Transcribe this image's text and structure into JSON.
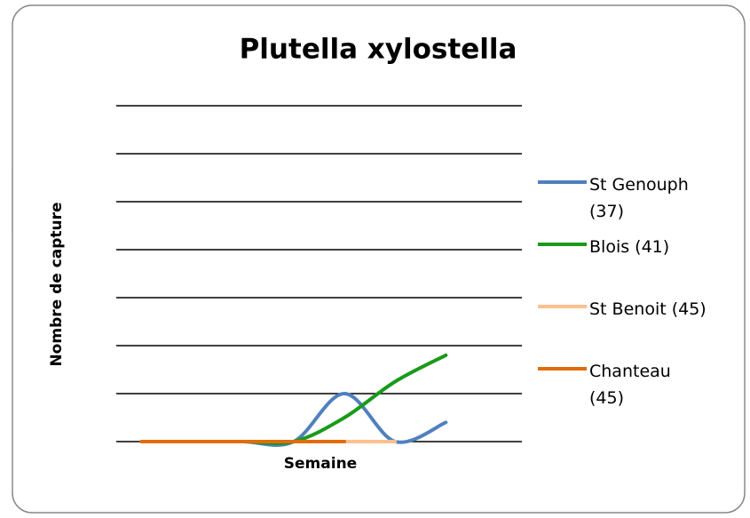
{
  "chart_data": {
    "type": "line",
    "title": "Plutella xylostella",
    "x_label": "Semaine",
    "y_label": "Nombre de capture",
    "categories": [
      null,
      null,
      null,
      null,
      null,
      null,
      null,
      null
    ],
    "ylim": [
      0,
      7
    ],
    "yticks": [
      0,
      1,
      2,
      3,
      4,
      5,
      6,
      7
    ],
    "grid": true,
    "legend": "right",
    "smooth": true,
    "series": [
      {
        "name": "St Genouph (37)",
        "color": "#4f81bd",
        "values": [
          0,
          0,
          0,
          0,
          1,
          0,
          0.4,
          null
        ]
      },
      {
        "name": "Blois (41)",
        "color": "#1a9a1a",
        "values": [
          0,
          0,
          0,
          0,
          0.5,
          1.25,
          1.8,
          null
        ]
      },
      {
        "name": "St Benoit (45)",
        "color": "#fac090",
        "values": [
          0,
          0,
          0,
          0,
          0,
          0,
          null,
          null
        ]
      },
      {
        "name": "Chanteau (45)",
        "color": "#e36c0a",
        "values": [
          0,
          0,
          0,
          0,
          0,
          null,
          null,
          null
        ]
      }
    ]
  }
}
